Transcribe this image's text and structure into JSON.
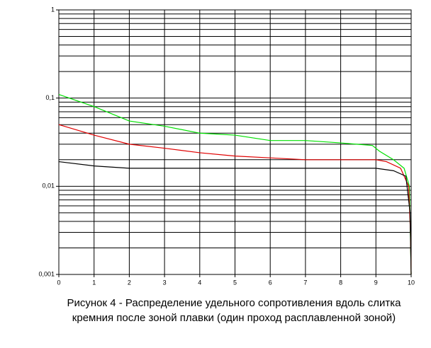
{
  "chart_data": {
    "type": "line",
    "title": "Рисунок 4 - Распределение удельного сопротивления вдоль слитка кремния после зоной плавки (один проход расплавленной зоной)",
    "log_y": true,
    "grid": true,
    "xlim": [
      0,
      10
    ],
    "xticks": [
      0,
      1,
      2,
      3,
      4,
      5,
      6,
      7,
      8,
      9,
      10
    ],
    "ylim": [
      0.001,
      1
    ],
    "yticks": [
      {
        "value": 0.001,
        "label": "0,001"
      },
      {
        "value": 0.01,
        "label": "0,01"
      },
      {
        "value": 0.1,
        "label": "0,1"
      },
      1
    ],
    "series": [
      {
        "color": "#00e000",
        "x": [
          0,
          1,
          2,
          3,
          4,
          5,
          6,
          7,
          8,
          8.9,
          9.1,
          9.5,
          9.8,
          9.95,
          10
        ],
        "values": [
          0.11,
          0.08,
          0.055,
          0.048,
          0.04,
          0.038,
          0.033,
          0.033,
          0.031,
          0.029,
          0.025,
          0.02,
          0.016,
          0.01,
          0.001
        ]
      },
      {
        "color": "#e00000",
        "x": [
          0,
          1,
          2,
          3,
          4,
          5,
          6,
          7,
          8,
          9,
          9.3,
          9.7,
          9.93,
          9.98,
          10
        ],
        "values": [
          0.05,
          0.038,
          0.03,
          0.027,
          0.024,
          0.022,
          0.021,
          0.02,
          0.02,
          0.02,
          0.019,
          0.016,
          0.01,
          0.003,
          0.001
        ]
      },
      {
        "color": "#000000",
        "x": [
          0,
          1,
          2,
          3,
          4,
          5,
          6,
          7,
          8,
          9,
          9.5,
          9.85,
          9.97,
          10
        ],
        "values": [
          0.019,
          0.017,
          0.016,
          0.016,
          0.016,
          0.016,
          0.016,
          0.016,
          0.016,
          0.016,
          0.015,
          0.013,
          0.005,
          0.001
        ]
      }
    ]
  }
}
